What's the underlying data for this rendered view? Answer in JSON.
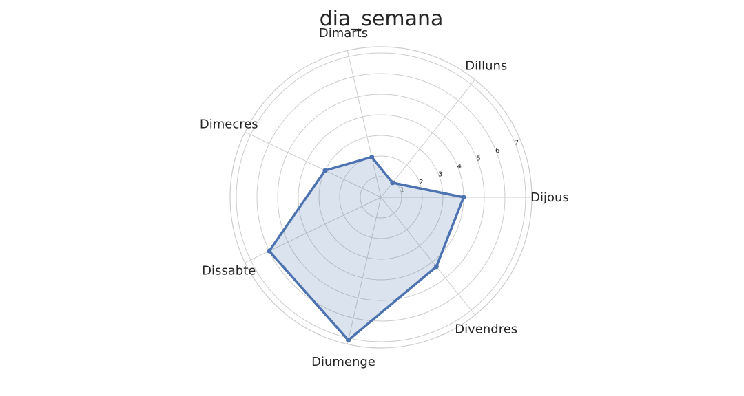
{
  "chart_data": {
    "type": "radar",
    "title": "dia_semana",
    "categories": [
      "Dijous",
      "Dilluns",
      "Dimarts",
      "Dimecres",
      "Dissabte",
      "Diumenge",
      "Divendres"
    ],
    "series": [
      {
        "values": [
          4.0,
          0.9,
          2.0,
          3.0,
          6.0,
          7.1,
          4.3
        ]
      }
    ],
    "radial_ticks": [
      1,
      2,
      3,
      4,
      5,
      6,
      7
    ],
    "rlim": [
      0,
      7.3
    ],
    "grid": true,
    "colors": {
      "line": "#4c72b0",
      "fill": "#4c72b0",
      "grid": "#cccccc",
      "text": "#262626"
    }
  }
}
